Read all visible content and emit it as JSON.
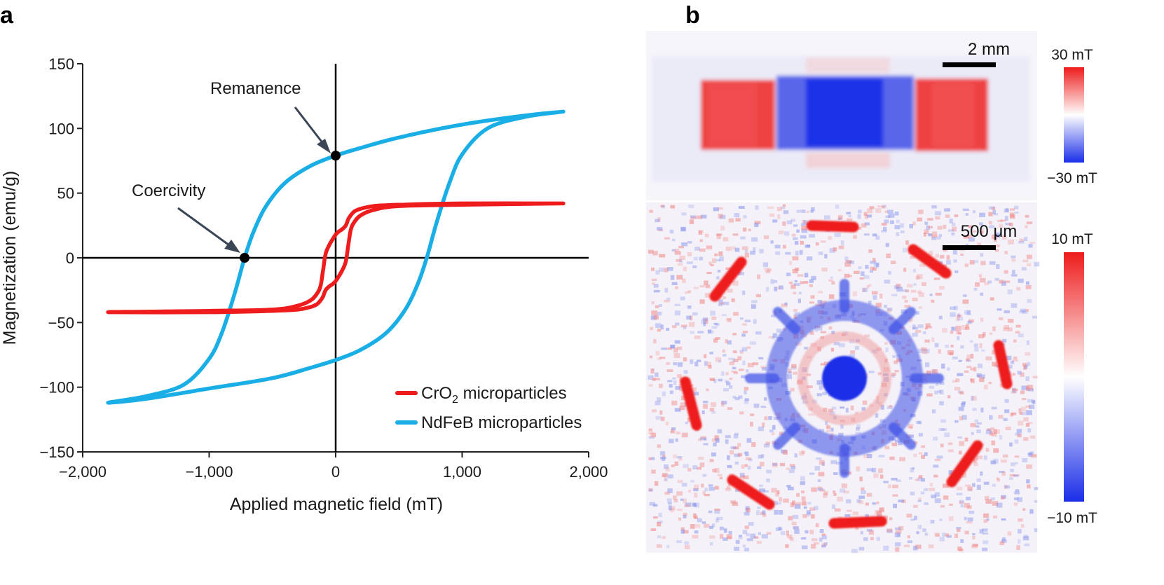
{
  "panels": {
    "a": "a",
    "b": "b"
  },
  "chart_data": {
    "type": "line",
    "title": "",
    "xlabel": "Applied magnetic field (mT)",
    "ylabel": "Magnetization (emu/g)",
    "xlim": [
      -2000,
      2000
    ],
    "ylim": [
      -150,
      150
    ],
    "xticks": [
      -2000,
      -1000,
      0,
      1000,
      2000
    ],
    "xtick_labels": [
      "−2,000",
      "−1,000",
      "0",
      "1,000",
      "2,000"
    ],
    "yticks": [
      150,
      100,
      50,
      0,
      -50,
      -100,
      -150
    ],
    "ytick_labels": [
      "150",
      "100",
      "50",
      "0",
      "−50",
      "−100",
      "−150"
    ],
    "grid": false,
    "legend_placement": "bottom-right",
    "series": [
      {
        "name": "CrO2 microparticles",
        "label_prefix": "CrO",
        "label_sub": "2",
        "label_suffix": " microparticles",
        "color": "#ee1c1c",
        "x": [
          1800,
          1000,
          500,
          300,
          200,
          150,
          120,
          100,
          80,
          50,
          20,
          0,
          -20,
          -50,
          -80,
          -100,
          -120,
          -150,
          -200,
          -300,
          -500,
          -1000,
          -1800,
          -1000,
          -500,
          -300,
          -200,
          -150,
          -120,
          -100,
          -80,
          -50,
          -20,
          0,
          20,
          50,
          80,
          100,
          120,
          150,
          200,
          300,
          500,
          1000,
          1800
        ],
        "y": [
          42,
          42,
          41,
          40,
          38,
          36,
          33,
          30,
          25,
          22,
          20,
          18,
          15,
          10,
          3,
          -10,
          -22,
          -28,
          -33,
          -37,
          -40,
          -41,
          -42,
          -42,
          -41,
          -40,
          -38,
          -36,
          -33,
          -30,
          -25,
          -22,
          -20,
          -18,
          -15,
          -10,
          -3,
          10,
          22,
          28,
          33,
          37,
          40,
          41,
          42
        ]
      },
      {
        "name": "NdFeB microparticles",
        "color": "#1aaee6",
        "x": [
          1800,
          1500,
          1000,
          500,
          200,
          0,
          -200,
          -400,
          -550,
          -650,
          -720,
          -800,
          -900,
          -1000,
          -1200,
          -1500,
          -1800,
          -1500,
          -1000,
          -500,
          -200,
          0,
          200,
          400,
          550,
          650,
          720,
          800,
          900,
          1000,
          1200,
          1500,
          1800
        ],
        "y": [
          113,
          110,
          103,
          93,
          85,
          79,
          71,
          58,
          40,
          20,
          0,
          -28,
          -58,
          -78,
          -98,
          -107,
          -112,
          -109,
          -101,
          -93,
          -85,
          -79,
          -71,
          -58,
          -40,
          -20,
          0,
          28,
          58,
          80,
          100,
          109,
          113
        ]
      }
    ],
    "points": [
      {
        "name": "Coercivity",
        "x": -720,
        "y": 0
      },
      {
        "name": "Remanence",
        "x": 0,
        "y": 79
      }
    ],
    "annotations": [
      {
        "text": "Remanence",
        "target": "Remanence"
      },
      {
        "text": "Coercivity",
        "target": "Coercivity"
      }
    ]
  },
  "maps": [
    {
      "scale_bar": "2 mm",
      "colorbar_max": "30 mT",
      "colorbar_min": "−30 mT",
      "colors": {
        "positive": "#ee1c1c",
        "negative": "#1a2ee8",
        "neutral": "#ffffff"
      }
    },
    {
      "scale_bar": "500 μm",
      "colorbar_max": "10 mT",
      "colorbar_min": "−10 mT",
      "colors": {
        "positive": "#ee1c1c",
        "negative": "#1a2ee8",
        "neutral": "#ffffff"
      }
    }
  ]
}
